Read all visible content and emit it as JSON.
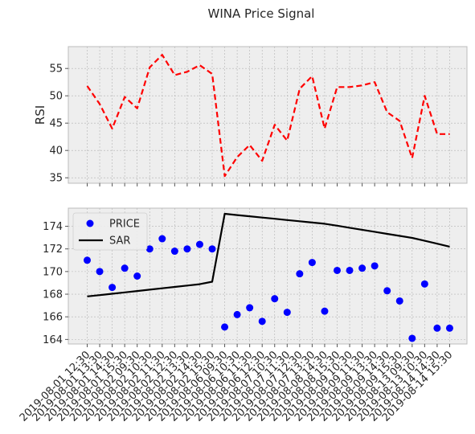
{
  "chart_data": {
    "title": "WINA Price Signal",
    "x_tick_labels": [
      "2019-08-01 12:30",
      "2019-08-01 13:30",
      "2019-08-01 14:30",
      "2019-08-01 15:30",
      "2019-08-02 09:30",
      "2019-08-02 10:30",
      "2019-08-02 11:30",
      "2019-08-02 12:30",
      "2019-08-02 13:30",
      "2019-08-02 14:30",
      "2019-08-02 15:30",
      "2019-08-06 09:30",
      "2019-08-06 10:30",
      "2019-08-06 11:30",
      "2019-08-06 12:30",
      "2019-08-07 10:30",
      "2019-08-07 11:30",
      "2019-08-07 12:30",
      "2019-08-07 13:30",
      "2019-08-08 14:30",
      "2019-08-08 15:30",
      "2019-08-09 10:30",
      "2019-08-09 11:30",
      "2019-08-09 13:30",
      "2019-08-09 14:30",
      "2019-08-09 15:30",
      "2019-08-13 09:30",
      "2019-08-13 10:30",
      "2019-08-14 14:30",
      "2019-08-14 15:30"
    ],
    "panels": [
      {
        "type": "line",
        "ylabel": "RSI",
        "ylim": [
          34,
          59
        ],
        "yticks": [
          35,
          40,
          45,
          50,
          55
        ],
        "grid": true,
        "series": [
          {
            "style": "dashed",
            "color": "#ff0000",
            "values": [
              51.8,
              48.5,
              44.0,
              49.8,
              47.7,
              55.2,
              57.5,
              53.8,
              54.4,
              55.6,
              54.0,
              35.3,
              38.8,
              41.0,
              38.1,
              44.7,
              41.8,
              51.3,
              53.6,
              44.0,
              51.6,
              51.6,
              51.9,
              52.5,
              47.0,
              45.4,
              38.6,
              50.0,
              43.0,
              43.0
            ]
          }
        ]
      },
      {
        "type": "scatter+line",
        "ylabel": "",
        "ylim": [
          163.6,
          175.6
        ],
        "yticks": [
          164,
          166,
          168,
          170,
          172,
          174
        ],
        "grid": true,
        "legend": "top-left",
        "series": [
          {
            "name": "PRICE",
            "type": "scatter",
            "color": "#0000ff",
            "values": [
              171.0,
              170.0,
              168.6,
              170.3,
              169.6,
              172.0,
              172.9,
              171.8,
              172.0,
              172.4,
              172.0,
              165.1,
              166.2,
              166.8,
              165.6,
              167.6,
              166.4,
              169.8,
              170.8,
              166.5,
              170.1,
              170.1,
              170.3,
              170.5,
              168.3,
              167.4,
              164.1,
              168.9,
              165.0,
              165.0
            ]
          },
          {
            "name": "SAR",
            "type": "line",
            "color": "#000000",
            "values": [
              167.8,
              167.92,
              168.04,
              168.16,
              168.28,
              168.4,
              168.52,
              168.64,
              168.76,
              168.88,
              169.1,
              175.1,
              174.99,
              174.88,
              174.77,
              174.66,
              174.55,
              174.44,
              174.33,
              174.22,
              174.05,
              173.87,
              173.69,
              173.51,
              173.33,
              173.15,
              172.97,
              172.72,
              172.46,
              172.2
            ]
          }
        ]
      }
    ]
  }
}
